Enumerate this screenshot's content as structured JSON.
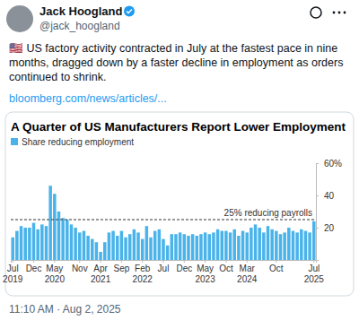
{
  "tweet": {
    "author": "Jack Hoogland",
    "handle": "@jack_hoogland",
    "text_lines": [
      "🇺🇸 US factory activity contracted in July at the fastest pace in nine",
      "months, dragged down by a faster decline in employment as orders",
      "continued to shrink."
    ],
    "link": "bloomberg.com/news/articles/...",
    "timestamp": "11:10 AM · Aug 2, 2025"
  },
  "chart_data": {
    "type": "bar",
    "title": "A Quarter of US Manufacturers Report Lower Employment",
    "series": [
      {
        "name": "Share reducing employment",
        "color": "#49b3ea",
        "values": [
          14,
          18,
          21,
          20,
          20,
          23,
          19,
          22,
          21,
          46,
          41,
          30,
          26,
          25,
          22,
          20,
          17,
          18,
          15,
          13,
          11,
          5,
          11,
          17,
          18,
          15,
          18,
          14,
          16,
          19,
          17,
          13,
          21,
          14,
          18,
          19,
          13,
          9,
          16,
          16,
          17,
          16,
          15,
          16,
          15,
          16,
          17,
          16,
          17,
          19,
          18,
          18,
          17,
          19,
          15,
          18,
          17,
          20,
          22,
          20,
          17,
          21,
          19,
          18,
          16,
          17,
          20,
          18,
          17,
          19,
          18,
          17,
          24
        ]
      }
    ],
    "categories": [
      "Jul 2019",
      null,
      null,
      null,
      null,
      "Dec",
      null,
      null,
      null,
      null,
      "May 2020",
      null,
      null,
      null,
      null,
      null,
      "Nov",
      null,
      null,
      null,
      null,
      "Apr 2021",
      null,
      null,
      null,
      null,
      "Sep",
      null,
      null,
      null,
      null,
      "Feb 2022",
      null,
      null,
      null,
      null,
      "Jul",
      null,
      null,
      null,
      null,
      "Dec",
      null,
      null,
      null,
      null,
      "May 2023",
      null,
      null,
      null,
      null,
      "Oct",
      null,
      null,
      null,
      null,
      "Mar 2024",
      null,
      null,
      null,
      null,
      null,
      null,
      "Oct",
      null,
      null,
      null,
      null,
      null,
      null,
      null,
      null,
      "Jul 2025"
    ],
    "ylim": [
      0,
      60
    ],
    "yticks": [
      20,
      40,
      {
        "value": 60,
        "label": "60%"
      }
    ],
    "grid": false,
    "legend": "upper left",
    "annotations": [
      {
        "value": 25,
        "label": "25% reducing payrolls"
      }
    ]
  }
}
